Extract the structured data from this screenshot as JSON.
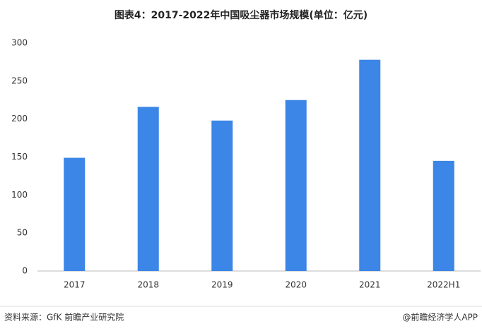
{
  "chart_data": {
    "type": "bar",
    "title": "图表4：2017-2022年中国吸尘器市场规模(单位：亿元)",
    "categories": [
      "2017",
      "2018",
      "2019",
      "2020",
      "2021",
      "2022H1"
    ],
    "values": [
      149,
      216,
      198,
      225,
      278,
      145
    ],
    "color": "#3b86e6",
    "ylim": [
      0,
      300
    ],
    "yticks": [
      0,
      50,
      100,
      150,
      200,
      250,
      300
    ],
    "grid": false,
    "source": "资料来源：GfK 前瞻产业研究院",
    "credit": "@前瞻经济学人APP"
  }
}
